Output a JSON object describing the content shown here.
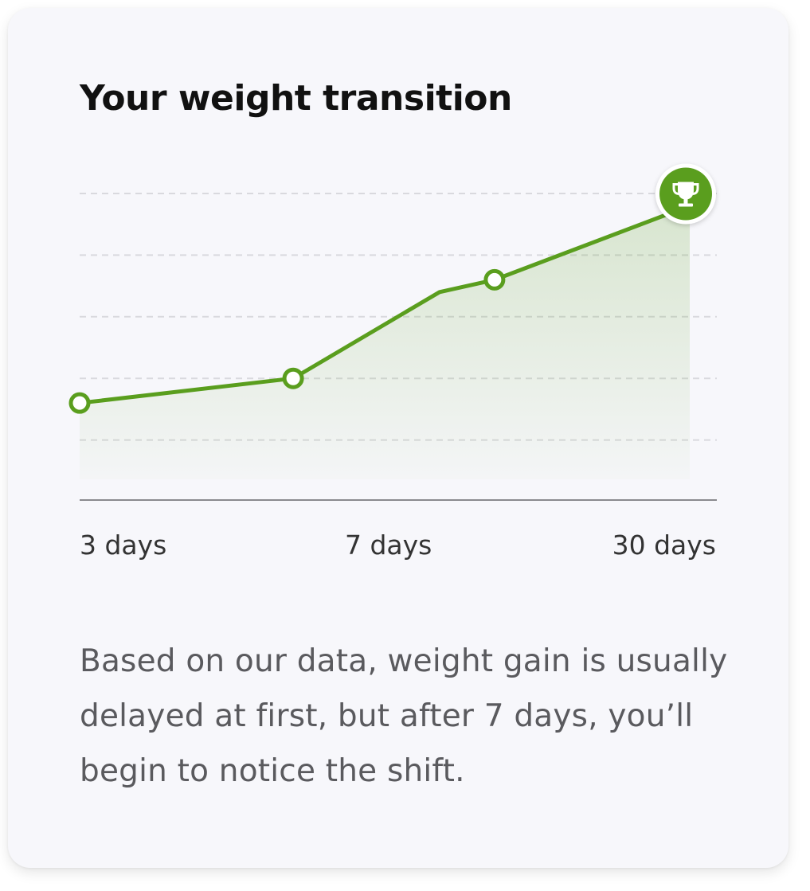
{
  "card": {
    "title": "Your weight transition",
    "description": "Based on our data, weight gain is usually delayed at first, but after 7 days, you’ll begin to notice the shift."
  },
  "chart_data": {
    "type": "area",
    "title": "Your weight transition",
    "x_tick_labels": [
      "3 days",
      "7 days",
      "30 days"
    ],
    "points": [
      {
        "x": 0,
        "y": 1.6,
        "marker": "circle"
      },
      {
        "x": 0.35,
        "y": 2.0,
        "marker": "circle"
      },
      {
        "x": 0.59,
        "y": 3.4,
        "marker": "none"
      },
      {
        "x": 0.68,
        "y": 3.6,
        "marker": "circle"
      },
      {
        "x": 1.0,
        "y": 4.8,
        "marker": "trophy"
      }
    ],
    "ylim": [
      0,
      5
    ],
    "gridlines": 5,
    "grid": true,
    "line_color": "#5a9e1e",
    "fill_color": "#5a9e1e",
    "end_marker_icon": "trophy-icon"
  }
}
